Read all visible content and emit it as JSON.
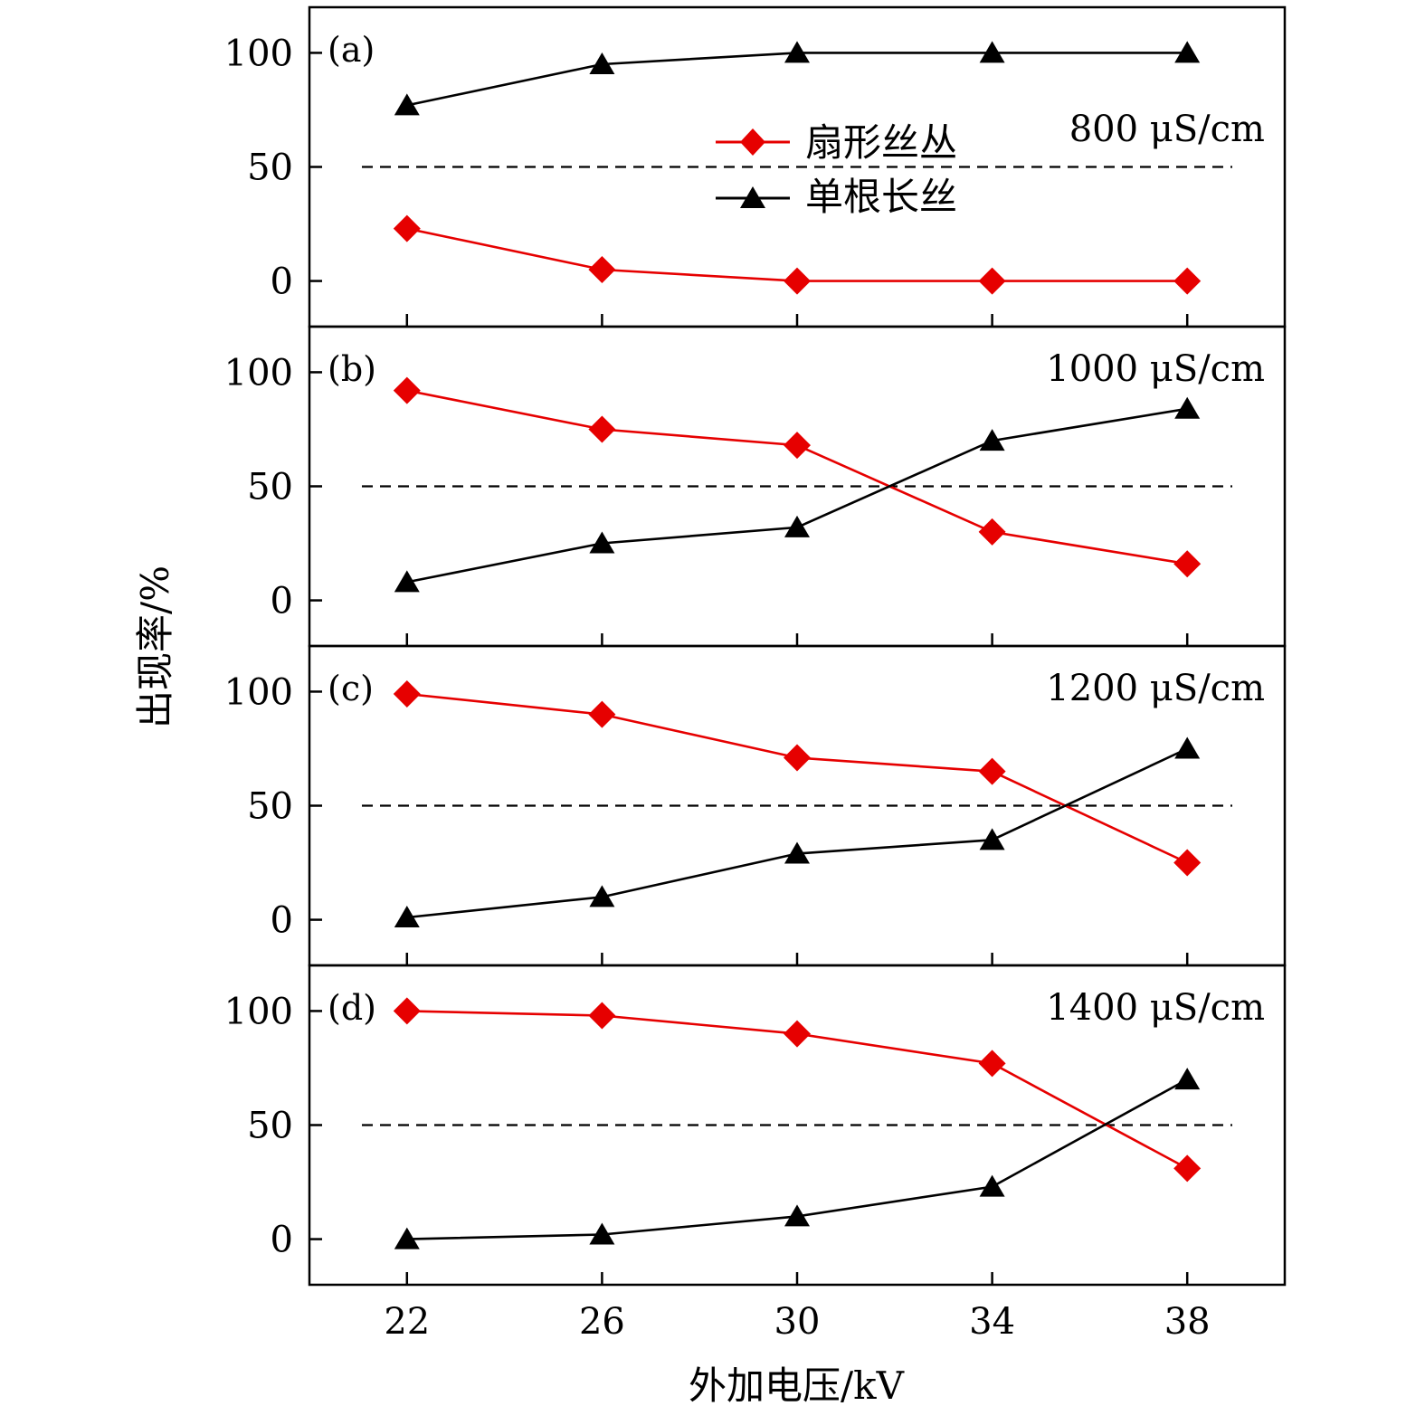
{
  "chart_data": {
    "type": "line",
    "xlabel": "外加电压/kV",
    "ylabel": "出现率/%",
    "x": [
      22,
      26,
      30,
      34,
      38
    ],
    "xticks": [
      "22",
      "26",
      "30",
      "34",
      "38"
    ],
    "xlim": [
      20,
      40
    ],
    "ylim": [
      -20,
      120
    ],
    "yticks": [
      "0",
      "50",
      "100"
    ],
    "threshold": 50,
    "legend": {
      "placement": "upper-center of panel (a)",
      "entries": [
        "扇形丝丛",
        "单根长丝"
      ]
    },
    "series_styles": [
      {
        "name": "扇形丝丛",
        "color": "#e60000",
        "marker": "diamond"
      },
      {
        "name": "单根长丝",
        "color": "#000000",
        "marker": "triangle"
      }
    ],
    "panels": [
      {
        "label": "(a)",
        "condition": "800 μS/cm",
        "series": [
          {
            "name": "扇形丝丛",
            "values": [
              23,
              5,
              0,
              0,
              0
            ]
          },
          {
            "name": "单根长丝",
            "values": [
              77,
              95,
              100,
              100,
              100
            ]
          }
        ]
      },
      {
        "label": "(b)",
        "condition": "1000 μS/cm",
        "series": [
          {
            "name": "扇形丝丛",
            "values": [
              92,
              75,
              68,
              30,
              16
            ]
          },
          {
            "name": "单根长丝",
            "values": [
              8,
              25,
              32,
              70,
              84
            ]
          }
        ]
      },
      {
        "label": "(c)",
        "condition": "1200 μS/cm",
        "series": [
          {
            "name": "扇形丝丛",
            "values": [
              99,
              90,
              71,
              65,
              25
            ]
          },
          {
            "name": "单根长丝",
            "values": [
              1,
              10,
              29,
              35,
              75
            ]
          }
        ]
      },
      {
        "label": "(d)",
        "condition": "1400 μS/cm",
        "series": [
          {
            "name": "扇形丝丛",
            "values": [
              100,
              98,
              90,
              77,
              31
            ]
          },
          {
            "name": "单根长丝",
            "values": [
              0,
              2,
              10,
              23,
              70
            ]
          }
        ]
      }
    ]
  }
}
